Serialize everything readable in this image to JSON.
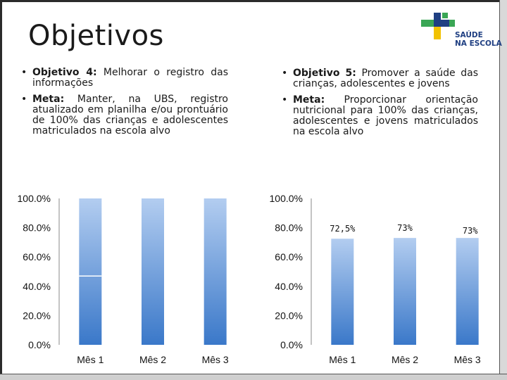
{
  "slide": {
    "title": "Objetivos",
    "logo_line1": "SAÚDE",
    "logo_line2": "NA ESCOLA"
  },
  "left_column": {
    "bullets": [
      {
        "label": "Objetivo 4:",
        "text": " Melhorar o registro das informações"
      },
      {
        "label": "Meta:",
        "text": " Manter, na UBS, registro atualizado em planilha e/ou prontuário de 100% das crianças e adolescentes matriculados na escola alvo"
      }
    ]
  },
  "right_column": {
    "bullets": [
      {
        "label": "Objetivo 5:",
        "text": " Promover a saúde das crianças, adolescentes e jovens"
      },
      {
        "label": "Meta:",
        "text": " Proporcionar orientação nutricional para 100% das crianças, adolescentes e jovens matriculados na escola alvo"
      }
    ]
  },
  "colors": {
    "bar_top": "#b3cdf0",
    "bar_bottom": "#3a78c9",
    "axis": "#888888",
    "brand_blue": "#1f3f82",
    "brand_green": "#3aa655",
    "brand_yellow": "#f2c200"
  },
  "chart_data": [
    {
      "type": "bar",
      "categories": [
        "Mês 1",
        "Mês 2",
        "Mês 3"
      ],
      "series": [
        {
          "values": [
            100,
            100,
            100
          ]
        }
      ],
      "segment_marks": [
        47,
        null,
        null
      ],
      "ylim": [
        0,
        100
      ],
      "yticks": [
        "0.0%",
        "20.0%",
        "40.0%",
        "60.0%",
        "80.0%",
        "100.0%"
      ],
      "data_labels": [],
      "title": "",
      "xlabel": "",
      "ylabel": "",
      "grid": false
    },
    {
      "type": "bar",
      "categories": [
        "Mês 1",
        "Mês 2",
        "Mês 3"
      ],
      "series": [
        {
          "values": [
            72.5,
            73,
            73
          ]
        }
      ],
      "ylim": [
        0,
        100
      ],
      "yticks": [
        "0.0%",
        "20.0%",
        "40.0%",
        "60.0%",
        "80.0%",
        "100.0%"
      ],
      "data_labels": [
        "72,5%",
        "73%",
        "73%"
      ],
      "title": "",
      "xlabel": "",
      "ylabel": "",
      "grid": false
    }
  ]
}
